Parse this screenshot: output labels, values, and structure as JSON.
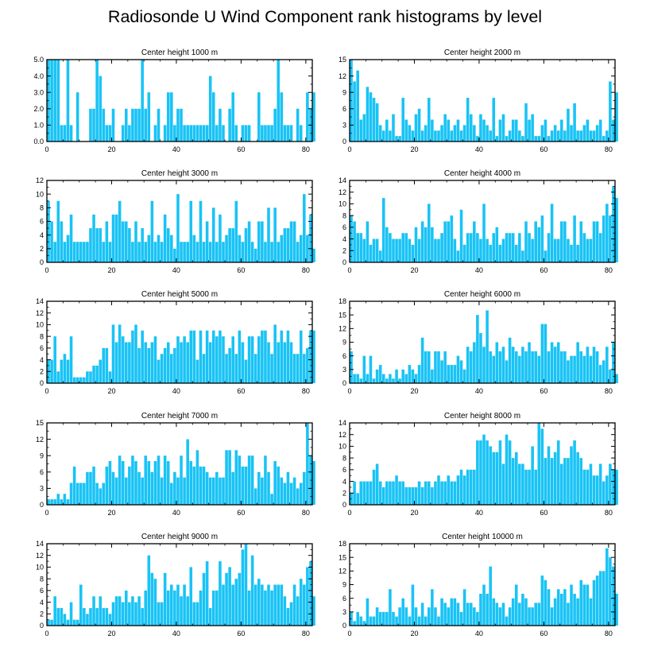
{
  "title": "Radiosonde U Wind Component rank histograms by level",
  "colors": {
    "bar": "#19c3f5",
    "axis": "#000000",
    "background": "#ffffff"
  },
  "chart_data": [
    {
      "type": "bar",
      "title": "Center height 1000 m",
      "xlim": [
        0,
        82
      ],
      "ylim": [
        0,
        5
      ],
      "yticks": [
        0,
        1,
        2,
        3,
        4,
        5
      ],
      "ytick_labels": [
        "0.0",
        "1.0",
        "2.0",
        "3.0",
        "4.0",
        "5.0"
      ],
      "xticks": [
        0,
        20,
        40,
        60,
        80
      ],
      "xtick_labels": [
        "0",
        "20",
        "40",
        "60",
        "80"
      ],
      "values": [
        5,
        5,
        5,
        5,
        1,
        1,
        5,
        1,
        0,
        3,
        0,
        0,
        0,
        2,
        2,
        5,
        4,
        2,
        1,
        1,
        2,
        0,
        0,
        1,
        2,
        1,
        2,
        2,
        2,
        5,
        2,
        3,
        0,
        1,
        2,
        0,
        1,
        3,
        3,
        1,
        2,
        2,
        1,
        1,
        1,
        1,
        1,
        1,
        1,
        1,
        4,
        3,
        1,
        2,
        1,
        0,
        2,
        3,
        1,
        0,
        1,
        1,
        1,
        0,
        0,
        3,
        1,
        1,
        1,
        1,
        2,
        5,
        3,
        1,
        1,
        1,
        0,
        2,
        1,
        0,
        3,
        2,
        3
      ]
    },
    {
      "type": "bar",
      "title": "Center height 2000 m",
      "xlim": [
        0,
        82
      ],
      "ylim": [
        0,
        15
      ],
      "yticks": [
        0,
        3,
        6,
        9,
        12,
        15
      ],
      "ytick_labels": [
        "0",
        "3",
        "6",
        "9",
        "12",
        "15"
      ],
      "xticks": [
        0,
        20,
        40,
        60,
        80
      ],
      "xtick_labels": [
        "0",
        "20",
        "40",
        "60",
        "80"
      ],
      "values": [
        15,
        11,
        13,
        4,
        5,
        10,
        9,
        8,
        7,
        3,
        2,
        4,
        2,
        5,
        1,
        1,
        8,
        4,
        3,
        2,
        5,
        6,
        2,
        3,
        8,
        4,
        2,
        2,
        3,
        5,
        4,
        2,
        3,
        4,
        2,
        3,
        8,
        5,
        3,
        1,
        5,
        4,
        3,
        2,
        8,
        1,
        4,
        5,
        1,
        2,
        4,
        4,
        2,
        1,
        7,
        4,
        5,
        1,
        1,
        3,
        4,
        1,
        2,
        3,
        2,
        4,
        2,
        6,
        3,
        7,
        2,
        2,
        3,
        4,
        2,
        2,
        3,
        4,
        1,
        2,
        11,
        4,
        9
      ]
    },
    {
      "type": "bar",
      "title": "Center height 3000 m",
      "xlim": [
        0,
        82
      ],
      "ylim": [
        0,
        12
      ],
      "yticks": [
        0,
        2,
        4,
        6,
        8,
        10,
        12
      ],
      "ytick_labels": [
        "0",
        "2",
        "4",
        "6",
        "8",
        "10",
        "12"
      ],
      "xticks": [
        0,
        20,
        40,
        60,
        80
      ],
      "xtick_labels": [
        "0",
        "20",
        "40",
        "60",
        "80"
      ],
      "values": [
        9,
        6,
        3,
        9,
        6,
        3,
        4,
        7,
        3,
        3,
        3,
        3,
        3,
        5,
        7,
        5,
        5,
        3,
        6,
        3,
        7,
        7,
        9,
        6,
        6,
        5,
        3,
        6,
        3,
        5,
        3,
        4,
        9,
        3,
        4,
        3,
        7,
        5,
        4,
        2,
        10,
        3,
        3,
        3,
        9,
        4,
        3,
        9,
        3,
        6,
        3,
        8,
        3,
        7,
        3,
        4,
        5,
        5,
        9,
        4,
        3,
        5,
        6,
        3,
        2,
        6,
        6,
        3,
        8,
        3,
        8,
        3,
        4,
        5,
        5,
        6,
        6,
        3,
        4,
        10,
        4,
        7,
        2
      ]
    },
    {
      "type": "bar",
      "title": "Center height 4000 m",
      "xlim": [
        0,
        82
      ],
      "ylim": [
        0,
        14
      ],
      "yticks": [
        0,
        2,
        4,
        6,
        8,
        10,
        12,
        14
      ],
      "ytick_labels": [
        "0",
        "2",
        "4",
        "6",
        "8",
        "10",
        "12",
        "14"
      ],
      "xticks": [
        0,
        20,
        40,
        60,
        80
      ],
      "xtick_labels": [
        "0",
        "20",
        "40",
        "60",
        "80"
      ],
      "values": [
        8,
        7,
        5,
        5,
        4,
        7,
        3,
        4,
        4,
        2,
        11,
        6,
        5,
        4,
        4,
        4,
        5,
        5,
        4,
        3,
        6,
        4,
        7,
        6,
        10,
        6,
        4,
        4,
        5,
        7,
        7,
        8,
        4,
        2,
        9,
        3,
        5,
        5,
        7,
        5,
        4,
        10,
        4,
        3,
        5,
        6,
        3,
        4,
        5,
        5,
        5,
        3,
        5,
        2,
        7,
        5,
        4,
        7,
        6,
        8,
        2,
        5,
        10,
        4,
        4,
        7,
        7,
        4,
        3,
        8,
        3,
        7,
        5,
        4,
        4,
        7,
        7,
        5,
        8,
        10,
        8,
        13,
        11
      ]
    },
    {
      "type": "bar",
      "title": "Center height 5000 m",
      "xlim": [
        0,
        82
      ],
      "ylim": [
        0,
        14
      ],
      "yticks": [
        0,
        2,
        4,
        6,
        8,
        10,
        12,
        14
      ],
      "ytick_labels": [
        "0",
        "2",
        "4",
        "6",
        "8",
        "10",
        "12",
        "14"
      ],
      "xticks": [
        0,
        20,
        40,
        60,
        80
      ],
      "xtick_labels": [
        "0",
        "20",
        "40",
        "60",
        "80"
      ],
      "values": [
        4,
        4,
        8,
        2,
        4,
        5,
        4,
        8,
        1,
        1,
        1,
        1,
        2,
        2,
        3,
        3,
        4,
        6,
        6,
        2,
        10,
        7,
        10,
        8,
        7,
        7,
        9,
        10,
        6,
        9,
        7,
        6,
        7,
        8,
        4,
        5,
        6,
        7,
        5,
        6,
        8,
        7,
        8,
        7,
        9,
        9,
        4,
        9,
        5,
        9,
        7,
        9,
        8,
        9,
        8,
        5,
        6,
        8,
        5,
        9,
        7,
        4,
        8,
        8,
        5,
        8,
        9,
        9,
        7,
        5,
        10,
        7,
        9,
        7,
        9,
        7,
        5,
        5,
        9,
        5,
        6,
        9,
        9
      ]
    },
    {
      "type": "bar",
      "title": "Center height 6000 m",
      "xlim": [
        0,
        82
      ],
      "ylim": [
        0,
        18
      ],
      "yticks": [
        0,
        3,
        6,
        9,
        12,
        15,
        18
      ],
      "ytick_labels": [
        "0",
        "3",
        "6",
        "9",
        "12",
        "15",
        "18"
      ],
      "xticks": [
        0,
        20,
        40,
        60,
        80
      ],
      "xtick_labels": [
        "0",
        "20",
        "40",
        "60",
        "80"
      ],
      "values": [
        7,
        2,
        2,
        1,
        6,
        2,
        6,
        1,
        3,
        4,
        2,
        1,
        2,
        1,
        3,
        1,
        3,
        2,
        4,
        3,
        2,
        4,
        10,
        7,
        7,
        3,
        7,
        7,
        5,
        7,
        4,
        4,
        4,
        6,
        5,
        3,
        8,
        7,
        9,
        15,
        11,
        8,
        16,
        7,
        6,
        9,
        7,
        8,
        5,
        10,
        8,
        7,
        6,
        8,
        7,
        9,
        7,
        7,
        6,
        13,
        13,
        7,
        9,
        8,
        9,
        7,
        7,
        5,
        6,
        6,
        9,
        7,
        6,
        8,
        6,
        8,
        7,
        4,
        5,
        8,
        3,
        9,
        2
      ]
    },
    {
      "type": "bar",
      "title": "Center height 7000 m",
      "xlim": [
        0,
        82
      ],
      "ylim": [
        0,
        15
      ],
      "yticks": [
        0,
        3,
        6,
        9,
        12,
        15
      ],
      "ytick_labels": [
        "0",
        "3",
        "6",
        "9",
        "12",
        "15"
      ],
      "xticks": [
        0,
        20,
        40,
        60,
        80
      ],
      "xtick_labels": [
        "0",
        "20",
        "40",
        "60",
        "80"
      ],
      "values": [
        1,
        1,
        1,
        2,
        1,
        2,
        1,
        4,
        7,
        4,
        4,
        4,
        6,
        6,
        7,
        4,
        3,
        4,
        7,
        8,
        6,
        5,
        9,
        8,
        5,
        7,
        9,
        8,
        6,
        5,
        9,
        8,
        6,
        8,
        9,
        5,
        9,
        8,
        4,
        6,
        5,
        9,
        5,
        12,
        8,
        7,
        10,
        7,
        7,
        6,
        5,
        5,
        6,
        5,
        5,
        10,
        10,
        6,
        10,
        9,
        7,
        7,
        9,
        9,
        3,
        6,
        5,
        9,
        6,
        2,
        8,
        7,
        5,
        4,
        6,
        4,
        5,
        3,
        4,
        6,
        15,
        9,
        8
      ]
    },
    {
      "type": "bar",
      "title": "Center height 8000 m",
      "xlim": [
        0,
        82
      ],
      "ylim": [
        0,
        14
      ],
      "yticks": [
        0,
        2,
        4,
        6,
        8,
        10,
        12,
        14
      ],
      "ytick_labels": [
        "0",
        "2",
        "4",
        "6",
        "8",
        "10",
        "12",
        "14"
      ],
      "xticks": [
        0,
        20,
        40,
        60,
        80
      ],
      "xtick_labels": [
        "0",
        "20",
        "40",
        "60",
        "80"
      ],
      "values": [
        2,
        4,
        2,
        4,
        4,
        4,
        4,
        6,
        7,
        4,
        3,
        4,
        4,
        4,
        5,
        4,
        4,
        3,
        3,
        3,
        3,
        4,
        3,
        4,
        4,
        3,
        4,
        5,
        4,
        4,
        5,
        4,
        4,
        5,
        6,
        5,
        6,
        6,
        6,
        11,
        11,
        12,
        11,
        10,
        9,
        9,
        11,
        7,
        12,
        11,
        8,
        9,
        7,
        7,
        6,
        6,
        10,
        6,
        14,
        13,
        8,
        10,
        8,
        9,
        11,
        7,
        8,
        8,
        10,
        11,
        9,
        8,
        6,
        6,
        7,
        5,
        5,
        7,
        4,
        5,
        7,
        6,
        6
      ]
    },
    {
      "type": "bar",
      "title": "Center height 9000 m",
      "xlim": [
        0,
        82
      ],
      "ylim": [
        0,
        14
      ],
      "yticks": [
        0,
        2,
        4,
        6,
        8,
        10,
        12,
        14
      ],
      "ytick_labels": [
        "0",
        "2",
        "4",
        "6",
        "8",
        "10",
        "12",
        "14"
      ],
      "xticks": [
        0,
        20,
        40,
        60,
        80
      ],
      "xtick_labels": [
        "0",
        "20",
        "40",
        "60",
        "80"
      ],
      "values": [
        1,
        1,
        5,
        3,
        3,
        2,
        1,
        4,
        1,
        1,
        7,
        3,
        2,
        3,
        5,
        3,
        5,
        3,
        3,
        2,
        4,
        5,
        5,
        4,
        6,
        4,
        5,
        4,
        5,
        3,
        6,
        12,
        9,
        8,
        4,
        4,
        9,
        6,
        7,
        6,
        7,
        5,
        7,
        5,
        10,
        4,
        4,
        6,
        9,
        11,
        3,
        6,
        6,
        11,
        7,
        9,
        10,
        7,
        8,
        9,
        13,
        14,
        6,
        12,
        7,
        8,
        7,
        6,
        7,
        6,
        7,
        7,
        7,
        5,
        3,
        4,
        7,
        5,
        8,
        7,
        10,
        11,
        5
      ]
    },
    {
      "type": "bar",
      "title": "Center height 10000 m",
      "xlim": [
        0,
        82
      ],
      "ylim": [
        0,
        18
      ],
      "yticks": [
        0,
        3,
        6,
        9,
        12,
        15,
        18
      ],
      "ytick_labels": [
        "0",
        "3",
        "6",
        "9",
        "12",
        "15",
        "18"
      ],
      "xticks": [
        0,
        20,
        40,
        60,
        80
      ],
      "xtick_labels": [
        "0",
        "20",
        "40",
        "60",
        "80"
      ],
      "values": [
        3,
        1,
        3,
        2,
        1,
        6,
        2,
        2,
        4,
        3,
        3,
        3,
        8,
        3,
        2,
        4,
        6,
        4,
        2,
        9,
        4,
        2,
        5,
        2,
        4,
        8,
        4,
        2,
        6,
        5,
        4,
        6,
        6,
        5,
        3,
        8,
        5,
        5,
        4,
        3,
        7,
        9,
        7,
        13,
        6,
        5,
        4,
        5,
        2,
        4,
        6,
        9,
        5,
        7,
        6,
        4,
        4,
        5,
        5,
        11,
        10,
        8,
        4,
        6,
        8,
        7,
        8,
        5,
        9,
        7,
        6,
        10,
        9,
        9,
        6,
        10,
        11,
        12,
        12,
        17,
        15,
        13,
        7
      ]
    }
  ]
}
